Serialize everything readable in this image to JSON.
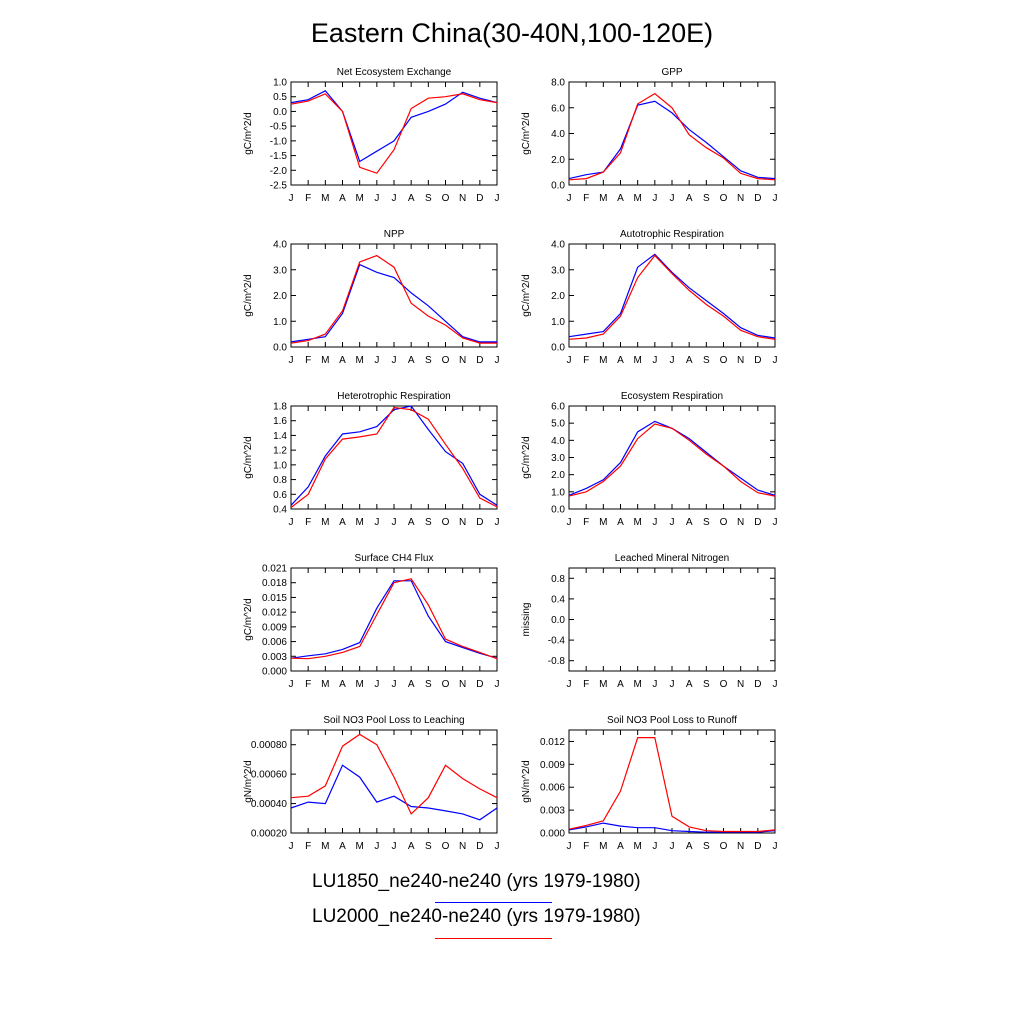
{
  "title": "Eastern China(30-40N,100-120E)",
  "months": [
    "J",
    "F",
    "M",
    "A",
    "M",
    "J",
    "J",
    "A",
    "S",
    "O",
    "N",
    "D",
    "J"
  ],
  "colors": {
    "series1": "#0000ff",
    "series2": "#ff0000",
    "axis": "#000000"
  },
  "legend": [
    {
      "label": "LU1850_ne240-ne240 (yrs 1979-1980)",
      "color": "#0000ff"
    },
    {
      "label": "LU2000_ne240-ne240 (yrs 1979-1980)",
      "color": "#ff0000"
    }
  ],
  "chart_data": [
    {
      "type": "line",
      "title": "Net Ecosystem Exchange",
      "ylabel": "gC/m^2/d",
      "ylim": [
        -2.5,
        1.0
      ],
      "yticks": [
        "-2.5",
        "-2.0",
        "-1.5",
        "-1.0",
        "-0.5",
        "0.0",
        "0.5",
        "1.0"
      ],
      "ytick_values": [
        -2.5,
        -2.0,
        -1.5,
        -1.0,
        -0.5,
        0.0,
        0.5,
        1.0
      ],
      "series": [
        {
          "values": [
            0.3,
            0.4,
            0.7,
            0.0,
            -1.7,
            -1.35,
            -1.0,
            -0.2,
            0.0,
            0.25,
            0.65,
            0.45,
            0.3
          ]
        },
        {
          "values": [
            0.25,
            0.35,
            0.6,
            0.0,
            -1.9,
            -2.1,
            -1.3,
            0.1,
            0.45,
            0.5,
            0.6,
            0.4,
            0.3
          ]
        }
      ]
    },
    {
      "type": "line",
      "title": "GPP",
      "ylabel": "gC/m^2/d",
      "ylim": [
        0.0,
        8.0
      ],
      "yticks": [
        "0.0",
        "2.0",
        "4.0",
        "6.0",
        "8.0"
      ],
      "ytick_values": [
        0,
        2,
        4,
        6,
        8
      ],
      "series": [
        {
          "values": [
            0.5,
            0.8,
            1.0,
            2.8,
            6.2,
            6.5,
            5.6,
            4.3,
            3.3,
            2.2,
            1.1,
            0.6,
            0.5
          ]
        },
        {
          "values": [
            0.4,
            0.5,
            1.0,
            2.5,
            6.3,
            7.1,
            6.0,
            3.9,
            2.9,
            2.1,
            0.9,
            0.5,
            0.4
          ]
        }
      ]
    },
    {
      "type": "line",
      "title": "NPP",
      "ylabel": "gC/m^2/d",
      "ylim": [
        0.0,
        4.0
      ],
      "yticks": [
        "0.0",
        "1.0",
        "2.0",
        "3.0",
        "4.0"
      ],
      "ytick_values": [
        0,
        1,
        2,
        3,
        4
      ],
      "series": [
        {
          "values": [
            0.2,
            0.3,
            0.4,
            1.3,
            3.2,
            2.9,
            2.7,
            2.1,
            1.6,
            1.0,
            0.4,
            0.2,
            0.2
          ]
        },
        {
          "values": [
            0.15,
            0.25,
            0.5,
            1.4,
            3.3,
            3.55,
            3.1,
            1.7,
            1.2,
            0.85,
            0.35,
            0.15,
            0.15
          ]
        }
      ]
    },
    {
      "type": "line",
      "title": "Autotrophic Respiration",
      "ylabel": "gC/m^2/d",
      "ylim": [
        0.0,
        4.0
      ],
      "yticks": [
        "0.0",
        "1.0",
        "2.0",
        "3.0",
        "4.0"
      ],
      "ytick_values": [
        0,
        1,
        2,
        3,
        4
      ],
      "series": [
        {
          "values": [
            0.4,
            0.5,
            0.6,
            1.3,
            3.1,
            3.6,
            2.9,
            2.3,
            1.8,
            1.3,
            0.75,
            0.45,
            0.35
          ]
        },
        {
          "values": [
            0.3,
            0.35,
            0.5,
            1.2,
            2.7,
            3.55,
            2.85,
            2.2,
            1.65,
            1.2,
            0.65,
            0.4,
            0.3
          ]
        }
      ]
    },
    {
      "type": "line",
      "title": "Heterotrophic Respiration",
      "ylabel": "gC/m^2/d",
      "ylim": [
        0.4,
        1.8
      ],
      "yticks": [
        "0.4",
        "0.6",
        "0.8",
        "1.0",
        "1.2",
        "1.4",
        "1.6",
        "1.8"
      ],
      "ytick_values": [
        0.4,
        0.6,
        0.8,
        1.0,
        1.2,
        1.4,
        1.6,
        1.8
      ],
      "series": [
        {
          "values": [
            0.45,
            0.7,
            1.12,
            1.42,
            1.45,
            1.52,
            1.75,
            1.8,
            1.48,
            1.18,
            1.02,
            0.6,
            0.45
          ]
        },
        {
          "values": [
            0.42,
            0.6,
            1.08,
            1.35,
            1.38,
            1.42,
            1.78,
            1.75,
            1.62,
            1.28,
            0.95,
            0.55,
            0.43
          ]
        }
      ]
    },
    {
      "type": "line",
      "title": "Ecosystem Respiration",
      "ylabel": "gC/m^2/d",
      "ylim": [
        0.0,
        6.0
      ],
      "yticks": [
        "0.0",
        "1.0",
        "2.0",
        "3.0",
        "4.0",
        "5.0",
        "6.0"
      ],
      "ytick_values": [
        0,
        1,
        2,
        3,
        4,
        5,
        6
      ],
      "series": [
        {
          "values": [
            0.8,
            1.2,
            1.7,
            2.7,
            4.5,
            5.1,
            4.7,
            4.1,
            3.3,
            2.5,
            1.8,
            1.1,
            0.8
          ]
        },
        {
          "values": [
            0.75,
            1.0,
            1.6,
            2.5,
            4.1,
            4.95,
            4.7,
            4.0,
            3.2,
            2.5,
            1.6,
            0.95,
            0.75
          ]
        }
      ]
    },
    {
      "type": "line",
      "title": "Surface CH4 Flux",
      "ylabel": "gC/m^2/d",
      "ylim": [
        0.0,
        0.021
      ],
      "yticks": [
        "0.000",
        "0.003",
        "0.006",
        "0.009",
        "0.012",
        "0.015",
        "0.018",
        "0.021"
      ],
      "ytick_values": [
        0,
        0.003,
        0.006,
        0.009,
        0.012,
        0.015,
        0.018,
        0.021
      ],
      "series": [
        {
          "values": [
            0.0026,
            0.0031,
            0.0035,
            0.0044,
            0.0058,
            0.0128,
            0.0184,
            0.0184,
            0.0112,
            0.006,
            0.0048,
            0.0036,
            0.0026
          ]
        },
        {
          "values": [
            0.0026,
            0.0025,
            0.003,
            0.0038,
            0.005,
            0.0115,
            0.018,
            0.0188,
            0.0135,
            0.0065,
            0.005,
            0.0038,
            0.0025
          ]
        }
      ]
    },
    {
      "type": "line",
      "title": "Leached Mineral Nitrogen",
      "ylabel": "missing",
      "ylim": [
        -1.0,
        1.0
      ],
      "yticks": [
        "-0.8",
        "-0.4",
        "0.0",
        "0.4",
        "0.8"
      ],
      "ytick_values": [
        -0.8,
        -0.4,
        0.0,
        0.4,
        0.8
      ],
      "series": []
    },
    {
      "type": "line",
      "title": "Soil NO3 Pool Loss to Leaching",
      "ylabel": "gN/m^2/d",
      "ylim": [
        0.0002,
        0.0009
      ],
      "yticks": [
        "0.00020",
        "0.00040",
        "0.00060",
        "0.00080"
      ],
      "ytick_values": [
        0.0002,
        0.0004,
        0.0006,
        0.0008
      ],
      "series": [
        {
          "values": [
            0.00037,
            0.00041,
            0.0004,
            0.00066,
            0.00058,
            0.00041,
            0.00045,
            0.00038,
            0.00037,
            0.00035,
            0.00033,
            0.00029,
            0.00037
          ]
        },
        {
          "values": [
            0.00044,
            0.00045,
            0.00052,
            0.00079,
            0.00087,
            0.0008,
            0.00058,
            0.00033,
            0.00044,
            0.00066,
            0.00057,
            0.0005,
            0.00044
          ]
        }
      ]
    },
    {
      "type": "line",
      "title": "Soil NO3 Pool Loss to Runoff",
      "ylabel": "gN/m^2/d",
      "ylim": [
        0.0,
        0.0135
      ],
      "yticks": [
        "0.000",
        "0.003",
        "0.006",
        "0.009",
        "0.012"
      ],
      "ytick_values": [
        0,
        0.003,
        0.006,
        0.009,
        0.012
      ],
      "series": [
        {
          "values": [
            0.0004,
            0.0008,
            0.0013,
            0.0009,
            0.0007,
            0.0007,
            0.0003,
            0.0002,
            0.0001,
            0.0001,
            0.0001,
            0.0001,
            0.0003
          ]
        },
        {
          "values": [
            0.0005,
            0.001,
            0.0016,
            0.0055,
            0.0125,
            0.0125,
            0.0022,
            0.0008,
            0.0003,
            0.0002,
            0.0002,
            0.0002,
            0.0004
          ]
        }
      ]
    }
  ]
}
